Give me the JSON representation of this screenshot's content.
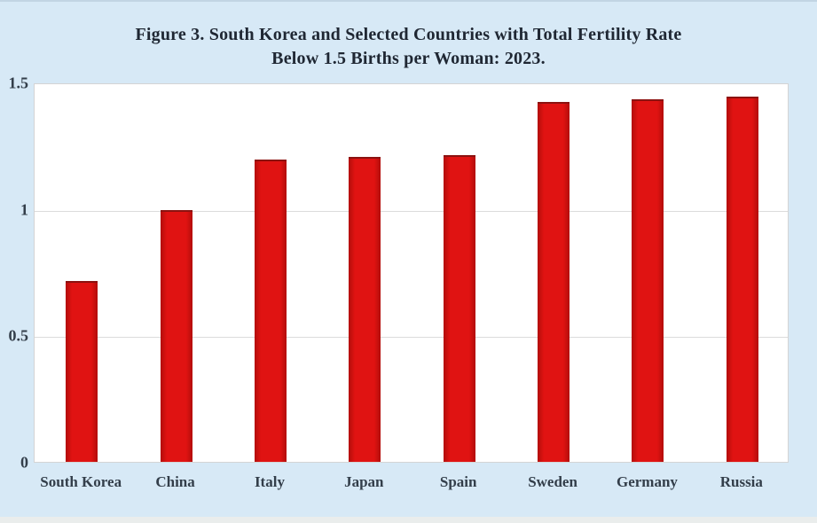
{
  "page": {
    "background_color": "#d7e9f6"
  },
  "title": {
    "line1": "Figure 3. South Korea and Selected Countries with Total Fertility Rate",
    "line2": "Below 1.5 Births per Woman: 2023."
  },
  "chart_data": {
    "type": "bar",
    "title": "Figure 3. South Korea and Selected Countries with Total Fertility Rate Below 1.5 Births per Woman: 2023.",
    "categories": [
      "South Korea",
      "China",
      "Italy",
      "Japan",
      "Spain",
      "Sweden",
      "Germany",
      "Russia"
    ],
    "values": [
      0.72,
      1.0,
      1.2,
      1.21,
      1.22,
      1.43,
      1.44,
      1.45
    ],
    "xlabel": "",
    "ylabel": "",
    "ylim": [
      0,
      1.5
    ],
    "yticks": [
      {
        "value": 1.5,
        "label": "1.5"
      },
      {
        "value": 1.0,
        "label": "1"
      },
      {
        "value": 0.5,
        "label": "0.5"
      },
      {
        "value": 0,
        "label": "0"
      }
    ],
    "gridlines": [
      1.0,
      0.5
    ],
    "grid": "horizontal",
    "legend": "none",
    "bar_color": "#da100f",
    "bar_edge_color": "#8c1210",
    "plot_background": "#ffffff",
    "axis_label_color": "#333e4a",
    "title_color": "#1f2733"
  }
}
